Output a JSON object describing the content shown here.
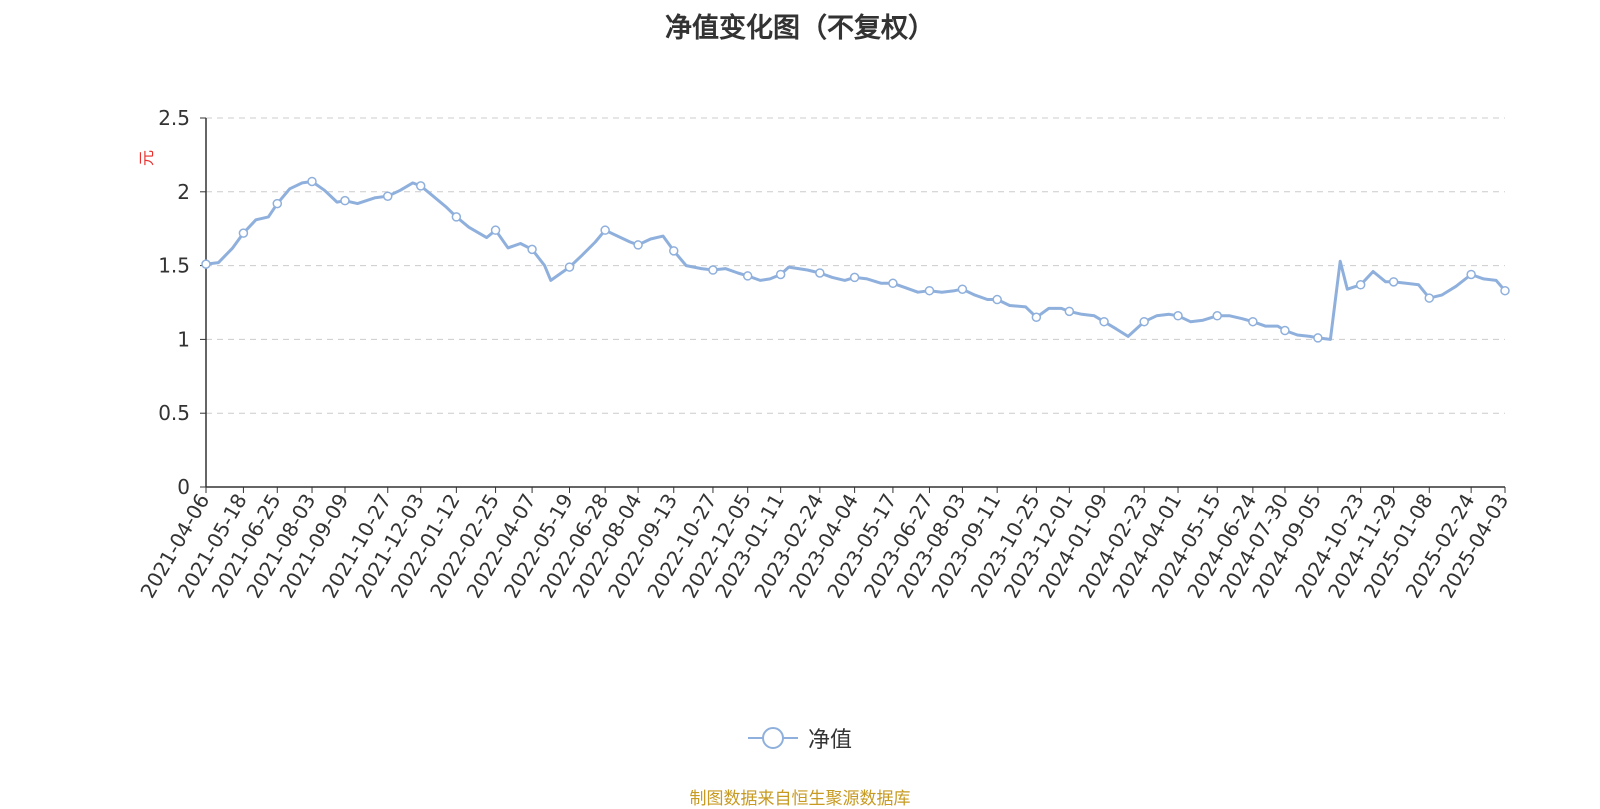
{
  "chart_data": {
    "type": "line",
    "title": "净值变化图（不复权）",
    "ylabel": "元",
    "ylim": [
      0,
      2.5
    ],
    "yticks": [
      "0",
      "0.5",
      "1",
      "1.5",
      "2",
      "2.5"
    ],
    "grid": "horizontal-dashed",
    "legend_position": "bottom",
    "x_tick_labels": [
      "2021-04-06",
      "2021-05-18",
      "2021-06-25",
      "2021-08-03",
      "2021-09-09",
      "2021-10-27",
      "2021-12-03",
      "2022-01-12",
      "2022-02-25",
      "2022-04-07",
      "2022-05-19",
      "2022-06-28",
      "2022-08-04",
      "2022-09-13",
      "2022-10-27",
      "2022-12-05",
      "2023-01-11",
      "2023-02-24",
      "2023-04-04",
      "2023-05-17",
      "2023-06-27",
      "2023-08-03",
      "2023-09-11",
      "2023-10-25",
      "2023-12-01",
      "2024-01-09",
      "2024-02-23",
      "2024-04-01",
      "2024-05-15",
      "2024-06-24",
      "2024-07-30",
      "2024-09-05",
      "2024-10-23",
      "2024-11-29",
      "2025-01-08",
      "2025-02-24",
      "2025-04-03"
    ],
    "series": [
      {
        "name": "净值",
        "color": "#8fb0dc",
        "x": [
          "2021-04-06",
          "2021-04-20",
          "2021-05-06",
          "2021-05-18",
          "2021-06-01",
          "2021-06-15",
          "2021-06-25",
          "2021-07-09",
          "2021-07-23",
          "2021-08-03",
          "2021-08-17",
          "2021-08-31",
          "2021-09-09",
          "2021-09-23",
          "2021-10-13",
          "2021-10-27",
          "2021-11-10",
          "2021-11-24",
          "2021-12-03",
          "2021-12-17",
          "2021-12-31",
          "2022-01-12",
          "2022-01-26",
          "2022-02-15",
          "2022-02-25",
          "2022-03-11",
          "2022-03-25",
          "2022-04-07",
          "2022-04-21",
          "2022-04-28",
          "2022-05-19",
          "2022-06-02",
          "2022-06-17",
          "2022-06-28",
          "2022-07-12",
          "2022-07-26",
          "2022-08-04",
          "2022-08-18",
          "2022-09-01",
          "2022-09-13",
          "2022-09-27",
          "2022-10-14",
          "2022-10-27",
          "2022-11-10",
          "2022-11-24",
          "2022-12-05",
          "2022-12-19",
          "2022-12-30",
          "2023-01-11",
          "2023-01-20",
          "2023-02-10",
          "2023-02-24",
          "2023-03-10",
          "2023-03-24",
          "2023-04-04",
          "2023-04-18",
          "2023-05-04",
          "2023-05-17",
          "2023-05-31",
          "2023-06-14",
          "2023-06-27",
          "2023-07-11",
          "2023-07-25",
          "2023-08-03",
          "2023-08-17",
          "2023-08-31",
          "2023-09-11",
          "2023-09-25",
          "2023-10-13",
          "2023-10-25",
          "2023-11-08",
          "2023-11-22",
          "2023-12-01",
          "2023-12-15",
          "2023-12-29",
          "2024-01-09",
          "2024-01-23",
          "2024-02-05",
          "2024-02-23",
          "2024-03-08",
          "2024-03-22",
          "2024-04-01",
          "2024-04-15",
          "2024-04-29",
          "2024-05-15",
          "2024-05-29",
          "2024-06-12",
          "2024-06-24",
          "2024-07-08",
          "2024-07-22",
          "2024-07-30",
          "2024-08-13",
          "2024-08-27",
          "2024-09-05",
          "2024-09-19",
          "2024-09-30",
          "2024-10-08",
          "2024-10-23",
          "2024-11-06",
          "2024-11-20",
          "2024-11-29",
          "2024-12-13",
          "2024-12-27",
          "2025-01-08",
          "2025-01-22",
          "2025-02-07",
          "2025-02-24",
          "2025-03-10",
          "2025-03-24",
          "2025-04-03"
        ],
        "y": [
          1.51,
          1.52,
          1.62,
          1.72,
          1.81,
          1.83,
          1.92,
          2.02,
          2.06,
          2.07,
          2.01,
          1.93,
          1.94,
          1.92,
          1.96,
          1.97,
          2.01,
          2.06,
          2.04,
          1.97,
          1.9,
          1.83,
          1.76,
          1.69,
          1.74,
          1.62,
          1.65,
          1.61,
          1.5,
          1.4,
          1.49,
          1.57,
          1.66,
          1.74,
          1.7,
          1.66,
          1.64,
          1.68,
          1.7,
          1.6,
          1.5,
          1.48,
          1.47,
          1.48,
          1.45,
          1.43,
          1.4,
          1.41,
          1.44,
          1.49,
          1.47,
          1.45,
          1.42,
          1.4,
          1.42,
          1.41,
          1.38,
          1.38,
          1.35,
          1.32,
          1.33,
          1.32,
          1.33,
          1.34,
          1.3,
          1.27,
          1.27,
          1.23,
          1.22,
          1.15,
          1.21,
          1.21,
          1.19,
          1.17,
          1.16,
          1.12,
          1.07,
          1.02,
          1.12,
          1.16,
          1.17,
          1.16,
          1.12,
          1.13,
          1.16,
          1.16,
          1.14,
          1.12,
          1.09,
          1.09,
          1.06,
          1.03,
          1.02,
          1.01,
          1.0,
          1.53,
          1.34,
          1.37,
          1.46,
          1.39,
          1.39,
          1.38,
          1.37,
          1.28,
          1.3,
          1.36,
          1.44,
          1.41,
          1.4,
          1.33
        ],
        "marker_indices": [
          0,
          3,
          6,
          9,
          12,
          15,
          18,
          21,
          24,
          27,
          30,
          33,
          36,
          39,
          42,
          45,
          48,
          51,
          54,
          57,
          60,
          63,
          66,
          69,
          72,
          75,
          78,
          81,
          84,
          87,
          90,
          93,
          97,
          100,
          103,
          106,
          109
        ]
      }
    ]
  },
  "legend": {
    "label": "净值"
  },
  "footer": {
    "source": "制图数据来自恒生聚源数据库"
  }
}
